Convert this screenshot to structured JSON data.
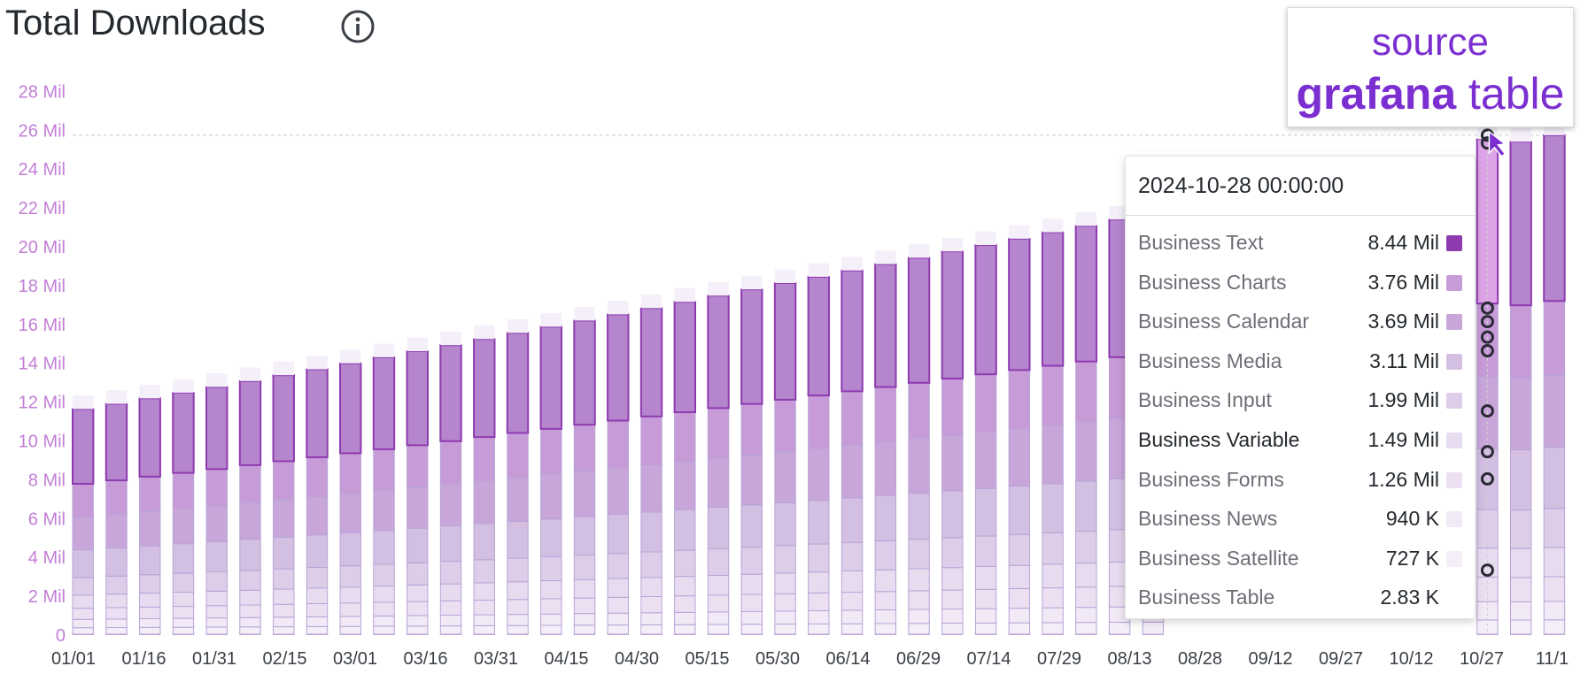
{
  "panel": {
    "title": "Total Downloads",
    "info_icon": "info-circle-icon"
  },
  "badge": {
    "line1": "source",
    "line2_bold": "grafana",
    "line2_rest": " table"
  },
  "tooltip": {
    "time": "2024-10-28 00:00:00",
    "rows": [
      {
        "name": "Business Text",
        "value": "8.44 Mil",
        "color": "#8e3bb0"
      },
      {
        "name": "Business Charts",
        "value": "3.76 Mil",
        "color": "#c79bd8"
      },
      {
        "name": "Business Calendar",
        "value": "3.69 Mil",
        "color": "#c8a6da"
      },
      {
        "name": "Business Media",
        "value": "3.11 Mil",
        "color": "#d3bfe2"
      },
      {
        "name": "Business Input",
        "value": "1.99 Mil",
        "color": "#ddcde8"
      },
      {
        "name": "Business Variable",
        "value": "1.49 Mil",
        "color": "#e7dcef",
        "highlight": true
      },
      {
        "name": "Business Forms",
        "value": "1.26 Mil",
        "color": "#ecdff2"
      },
      {
        "name": "Business News",
        "value": "940 K",
        "color": "#f1e9f6"
      },
      {
        "name": "Business Satellite",
        "value": "727 K",
        "color": "#f3eef8"
      },
      {
        "name": "Business Table",
        "value": "2.83 K",
        "color": "#ffffff"
      }
    ]
  },
  "chart_data": {
    "type": "bar",
    "stacked": true,
    "title": "Total Downloads",
    "y_unit": "Mil",
    "ylim": [
      0,
      28
    ],
    "y_ticks": [
      "0",
      "2 Mil",
      "4 Mil",
      "6 Mil",
      "8 Mil",
      "10 Mil",
      "12 Mil",
      "14 Mil",
      "16 Mil",
      "18 Mil",
      "20 Mil",
      "22 Mil",
      "24 Mil",
      "26 Mil",
      "28 Mil"
    ],
    "x_ticks": [
      "01/01",
      "01/16",
      "01/31",
      "02/15",
      "03/01",
      "03/16",
      "03/31",
      "04/15",
      "04/30",
      "05/15",
      "05/30",
      "06/14",
      "06/29",
      "07/14",
      "07/29",
      "08/13",
      "08/28",
      "09/12",
      "09/27",
      "10/12",
      "10/27",
      "11/1"
    ],
    "threshold_line": 25.7,
    "bar_count": 45,
    "totals_first": 11.6,
    "totals_last": 25.7,
    "hovered_date": "2024-10-28",
    "series": [
      {
        "name": "Business Table",
        "color": "#f6f2fa",
        "value_oct28": 0.003
      },
      {
        "name": "Business Satellite",
        "color": "#f3eef8",
        "value_oct28": 0.727
      },
      {
        "name": "Business News",
        "color": "#f1e9f6",
        "value_oct28": 0.94
      },
      {
        "name": "Business Forms",
        "color": "#ecdff2",
        "value_oct28": 1.26
      },
      {
        "name": "Business Variable",
        "color": "#e7dcef",
        "value_oct28": 1.49
      },
      {
        "name": "Business Input",
        "color": "#ddcde8",
        "value_oct28": 1.99
      },
      {
        "name": "Business Media",
        "color": "#d3bfe2",
        "value_oct28": 3.11
      },
      {
        "name": "Business Calendar",
        "color": "#c8a6da",
        "value_oct28": 3.69
      },
      {
        "name": "Business Charts",
        "color": "#c79bd8",
        "value_oct28": 3.76
      },
      {
        "name": "Business Text",
        "color": "#a871c6",
        "value_oct28": 8.44
      }
    ],
    "grid": false,
    "legend": "tooltip"
  }
}
